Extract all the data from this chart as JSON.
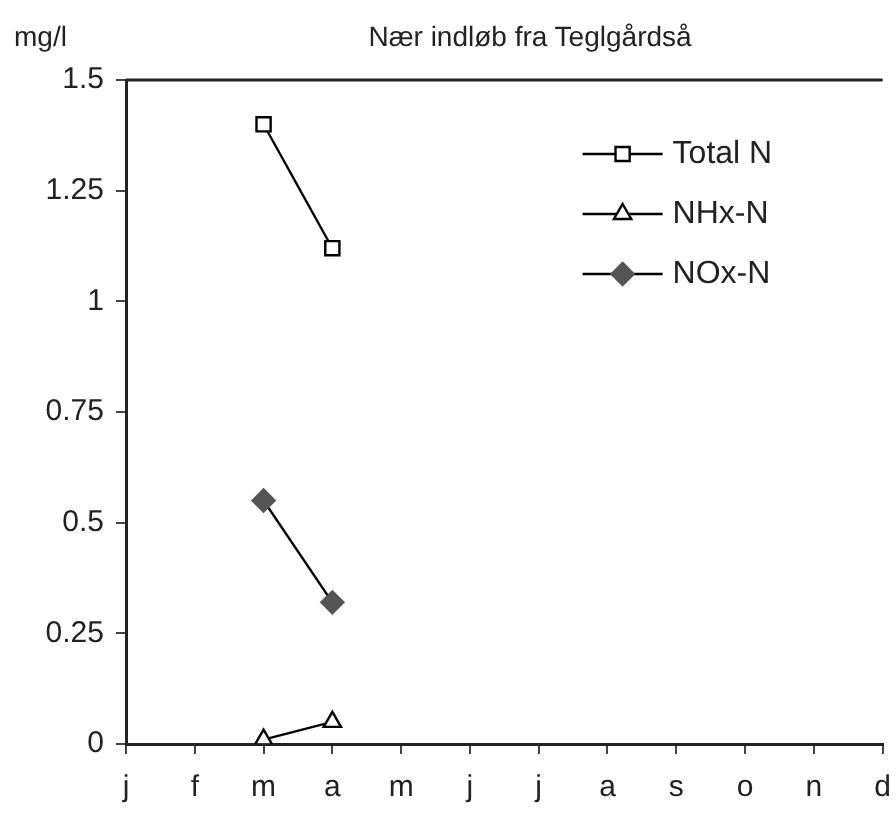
{
  "chart_data": {
    "type": "line",
    "title": "Nær indløb fra Teglgårdså",
    "ylabel": "mg/l",
    "categories": [
      "j",
      "f",
      "m",
      "a",
      "m",
      "j",
      "j",
      "a",
      "s",
      "o",
      "n",
      "d"
    ],
    "series": [
      {
        "name": "Total N",
        "color": "#000000",
        "marker": "square",
        "values": [
          null,
          null,
          1.4,
          1.12,
          null,
          null,
          null,
          null,
          null,
          null,
          null,
          null
        ]
      },
      {
        "name": "NHx-N",
        "color": "#000000",
        "marker": "triangle",
        "values": [
          null,
          null,
          0.01,
          0.05,
          null,
          null,
          null,
          null,
          null,
          null,
          null,
          null
        ]
      },
      {
        "name": "NOx-N",
        "color": "#555555",
        "marker": "diamond",
        "values": [
          null,
          null,
          0.55,
          0.32,
          null,
          null,
          null,
          null,
          null,
          null,
          null,
          null
        ]
      }
    ],
    "ylim": [
      0,
      1.5
    ],
    "yticks": [
      0,
      {
        "value": 0.25,
        "label": "0.25"
      },
      {
        "value": 0.5,
        "label": "0.5"
      },
      {
        "value": 0.75,
        "label": "0.75"
      },
      1,
      {
        "value": 1.25,
        "label": "1.25"
      },
      1.5
    ],
    "grid": false,
    "legend": "top right",
    "line_style": "solid"
  }
}
